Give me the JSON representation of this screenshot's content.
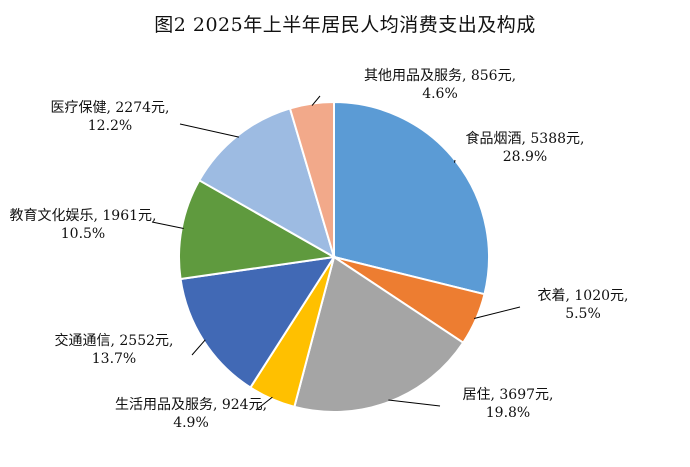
{
  "chart_data": {
    "type": "pie",
    "title": "图2  2025年上半年居民人均消费支出及构成",
    "unit": "元",
    "slices": [
      {
        "name": "食品烟酒",
        "value": 5388,
        "percent": "28.9%",
        "color": "#5b9bd5"
      },
      {
        "name": "衣着",
        "value": 1020,
        "percent": "5.5%",
        "color": "#ed7d31"
      },
      {
        "name": "居住",
        "value": 3697,
        "percent": "19.8%",
        "color": "#a5a5a5"
      },
      {
        "name": "生活用品及服务",
        "value": 924,
        "percent": "4.9%",
        "color": "#ffc000"
      },
      {
        "name": "交通通信",
        "value": 2552,
        "percent": "13.7%",
        "color": "#4169b5"
      },
      {
        "name": "教育文化娱乐",
        "value": 1961,
        "percent": "10.5%",
        "color": "#5f9a3e"
      },
      {
        "name": "医疗保健",
        "value": 2274,
        "percent": "12.2%",
        "color": "#9dbbe2"
      },
      {
        "name": "其他用品及服务",
        "value": 856,
        "percent": "4.6%",
        "color": "#f2a98a"
      }
    ]
  }
}
